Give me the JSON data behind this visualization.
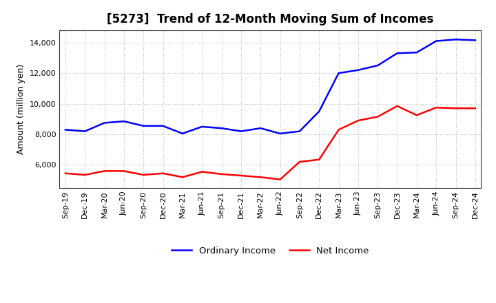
{
  "title": "[5273]  Trend of 12-Month Moving Sum of Incomes",
  "ylabel": "Amount (million yen)",
  "x_labels": [
    "Sep-19",
    "Dec-19",
    "Mar-20",
    "Jun-20",
    "Sep-20",
    "Dec-20",
    "Mar-21",
    "Jun-21",
    "Sep-21",
    "Dec-21",
    "Mar-22",
    "Jun-22",
    "Sep-22",
    "Dec-22",
    "Mar-23",
    "Jun-23",
    "Sep-23",
    "Dec-23",
    "Mar-24",
    "Jun-24",
    "Sep-24",
    "Dec-24"
  ],
  "ordinary_income": [
    8300,
    8200,
    8750,
    8850,
    8550,
    8550,
    8050,
    8500,
    8400,
    8200,
    8400,
    8050,
    8200,
    9500,
    12000,
    12200,
    12500,
    13300,
    13350,
    14100,
    14200,
    14150
  ],
  "net_income": [
    5450,
    5350,
    5600,
    5600,
    5350,
    5450,
    5200,
    5550,
    5400,
    5300,
    5200,
    5050,
    6200,
    6350,
    8300,
    8900,
    9150,
    9850,
    9250,
    9750,
    9700,
    9700
  ],
  "ordinary_color": "#0000ff",
  "net_color": "#ff0000",
  "ylim_min": 4500,
  "ylim_max": 14800,
  "yticks": [
    6000,
    8000,
    10000,
    12000,
    14000
  ],
  "background_color": "#ffffff",
  "grid_color": "#888888",
  "title_fontsize": 12,
  "axis_label_fontsize": 9,
  "tick_fontsize": 8,
  "legend_fontsize": 9.5,
  "line_width": 1.8
}
